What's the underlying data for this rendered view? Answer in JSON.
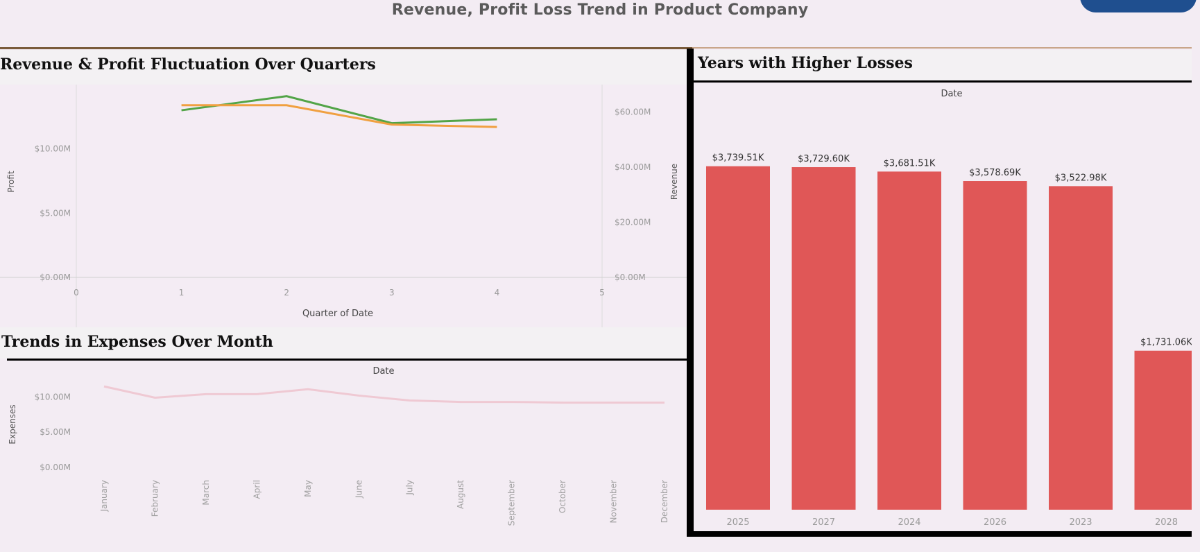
{
  "dashboard_title": "Revenue, Profit Loss Trend in Product Company",
  "colors": {
    "profit_line": "#52a447",
    "revenue_line": "#f0a040",
    "expenses_line": "#efc9d3",
    "loss_bar": "#e05757",
    "background": "#f3ecf3"
  },
  "chart_data": [
    {
      "type": "line",
      "title": "Revenue & Profit Fluctuation Over Quarters",
      "xlabel": "Quarter of Date",
      "x_ticks": [
        "0",
        "1",
        "2",
        "3",
        "4",
        "5"
      ],
      "xlim": [
        0,
        5
      ],
      "x": [
        1,
        2,
        3,
        4
      ],
      "y_left_label": "Profit",
      "y_left_ticks": [
        "$0.00M",
        "$5.00M",
        "$10.00M"
      ],
      "y_left_lim": [
        0,
        15.0
      ],
      "y_right_label": "Revenue",
      "y_right_ticks": [
        "$0.00M",
        "$20.00M",
        "$40.00M",
        "$60.00M"
      ],
      "y_right_lim": [
        0,
        70.0
      ],
      "series": [
        {
          "name": "Profit",
          "axis": "left",
          "values": [
            13.0,
            14.1,
            12.0,
            12.3
          ]
        },
        {
          "name": "Revenue",
          "axis": "right",
          "values": [
            62.5,
            62.5,
            55.5,
            54.6
          ]
        }
      ]
    },
    {
      "type": "line",
      "title": "Trends in Expenses Over Month",
      "xlabel": "Date",
      "ylabel": "Expenses",
      "categories": [
        "January",
        "February",
        "March",
        "April",
        "May",
        "June",
        "July",
        "August",
        "September",
        "October",
        "November",
        "December"
      ],
      "y_ticks": [
        "$0.00M",
        "$5.00M",
        "$10.00M"
      ],
      "ylim": [
        0,
        13.0
      ],
      "series": [
        {
          "name": "Expenses",
          "values": [
            11.5,
            9.9,
            10.4,
            10.4,
            11.1,
            10.2,
            9.5,
            9.3,
            9.3,
            9.2,
            9.2,
            9.2
          ]
        }
      ]
    },
    {
      "type": "bar",
      "title": "Years with Higher Losses",
      "xlabel": "Date",
      "categories": [
        "2025",
        "2027",
        "2024",
        "2026",
        "2023",
        "2028"
      ],
      "values": [
        3739.51,
        3729.6,
        3681.51,
        3578.69,
        3522.98,
        1731.06
      ],
      "data_labels": [
        "$3,739.51K",
        "$3,729.60K",
        "$3,681.51K",
        "$3,578.69K",
        "$3,522.98K",
        "$1,731.06K"
      ],
      "ylim": [
        0,
        4500
      ]
    }
  ]
}
